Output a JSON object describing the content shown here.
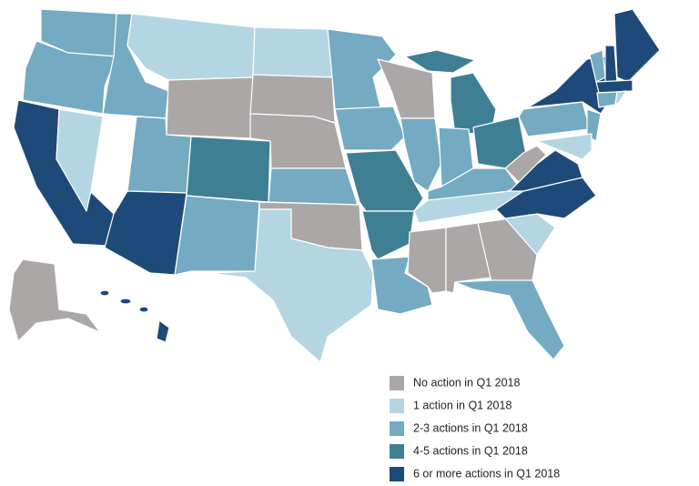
{
  "legend": {
    "items": [
      {
        "label": "No action in Q1 2018",
        "color": "#aba7a6"
      },
      {
        "label": "1 action in Q1 2018",
        "color": "#b4d6e2"
      },
      {
        "label": "2-3 actions in Q1 2018",
        "color": "#74aac2"
      },
      {
        "label": "4-5 actions in Q1 2018",
        "color": "#3f7f94"
      },
      {
        "label": "6 or more actions in Q1 2018",
        "color": "#1e4a79"
      }
    ]
  }
}
